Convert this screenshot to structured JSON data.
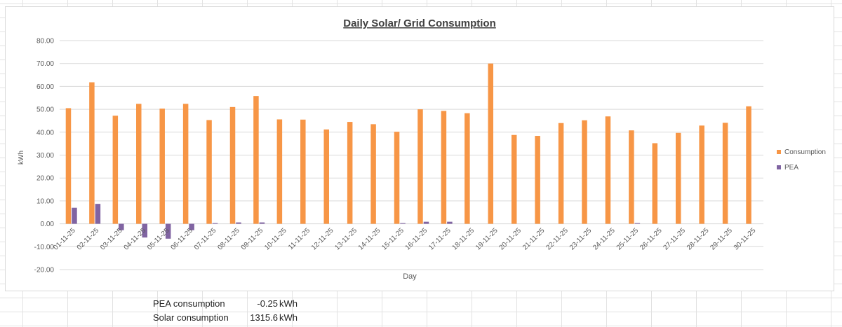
{
  "chart_data": {
    "type": "bar",
    "title": "Daily Solar/ Grid Consumption",
    "xlabel": "Day",
    "ylabel": "kWh",
    "ylim": [
      -20,
      80
    ],
    "yticks": [
      "-20.00",
      "-10.00",
      "0.00",
      "10.00",
      "20.00",
      "30.00",
      "40.00",
      "50.00",
      "60.00",
      "70.00",
      "80.00"
    ],
    "legend_position": "right",
    "categories": [
      "01-11-25",
      "02-11-25",
      "03-11-25",
      "04-11-25",
      "05-11-25",
      "06-11-25",
      "07-11-25",
      "08-11-25",
      "09-11-25",
      "10-11-25",
      "11-11-25",
      "12-11-25",
      "13-11-25",
      "14-11-25",
      "15-11-25",
      "16-11-25",
      "17-11-25",
      "18-11-25",
      "19-11-25",
      "20-11-25",
      "21-11-25",
      "22-11-25",
      "23-11-25",
      "24-11-25",
      "25-11-25",
      "26-11-25",
      "27-11-25",
      "28-11-25",
      "29-11-25",
      "30-11-25"
    ],
    "series": [
      {
        "name": "Consumption",
        "color": "#f79646",
        "values": [
          50.5,
          61.8,
          47.2,
          52.4,
          50.3,
          52.4,
          45.3,
          51.0,
          55.8,
          45.6,
          45.5,
          41.2,
          44.5,
          43.5,
          40.2,
          50.0,
          49.3,
          48.3,
          70.0,
          38.8,
          38.4,
          44.0,
          45.2,
          46.9,
          40.8,
          35.2,
          39.7,
          42.9,
          44.1,
          51.3
        ]
      },
      {
        "name": "PEA",
        "color": "#8064a2",
        "values": [
          7.0,
          8.7,
          -2.8,
          -6.0,
          -6.5,
          -2.8,
          0.3,
          0.6,
          0.6,
          0,
          0,
          0,
          0,
          0,
          0.3,
          0.9,
          0.9,
          0,
          0,
          0,
          0,
          0,
          0,
          0,
          0.3,
          0,
          0,
          0,
          0,
          0
        ]
      }
    ]
  },
  "summary": {
    "pea_label": "PEA consumption",
    "pea_value": "-0.25",
    "pea_unit": "kWh",
    "solar_label": "Solar consumption",
    "solar_value": "1315.6",
    "solar_unit": "kWh"
  }
}
